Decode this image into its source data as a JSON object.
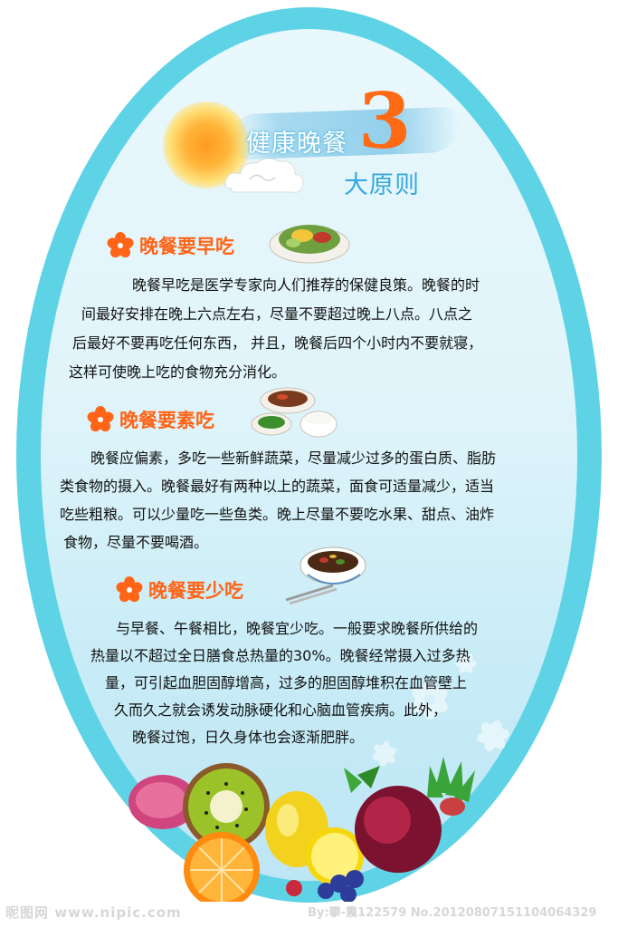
{
  "title": {
    "main": "健康晚餐",
    "number": "3",
    "sub": "大原则"
  },
  "sections": [
    {
      "heading": "晚餐要早吃",
      "lines": [
        "晚餐早吃是医学专家向人们推荐的保健良策。晚餐的时",
        "间最好安排在晚上六点左右，尽量不要超过晚上八点。八点之",
        "后最好不要再吃任何东西， 并且，晚餐后四个小时内不要就寝，",
        "这样可使晚上吃的食物充分消化。"
      ]
    },
    {
      "heading": "晚餐要素吃",
      "lines": [
        "晚餐应偏素，多吃一些新鲜蔬菜，尽量减少过多的蛋白质、脂肪",
        "类食物的摄入。晚餐最好有两种以上的蔬菜，面食可适量减少，适当",
        "吃些粗粮。可以少量吃一些鱼类。晚上尽量不要吃水果、甜点、油炸",
        "食物，尽量不要喝酒。"
      ]
    },
    {
      "heading": "晚餐要少吃",
      "lines": [
        "与早餐、午餐相比，晚餐宜少吃。一般要求晚餐所供给的",
        "热量以不超过全日膳食总热量的30%。晚餐经常摄入过多热",
        "量，可引起血胆固醇增高，过多的胆固醇堆积在血管壁上",
        "久而久之就会诱发动脉硬化和心脑血管疾病。此外，",
        "晚餐过饱，日久身体也会逐渐肥胖。"
      ]
    }
  ],
  "footer": {
    "left": "昵图网 www.nipic.com",
    "right": "By:攀-震122579 No.20120807151104064329"
  },
  "colors": {
    "heading": "#ff6417",
    "border": "#5fd3e6",
    "title_number": "#ff6a14",
    "title_sub": "#34a8e0"
  },
  "icons": [
    "sun-icon",
    "cloud-icon",
    "flower-bullet-icon",
    "salad-dish-icon",
    "meal-set-icon",
    "bowl-chopsticks-icon",
    "fruit-basket-illustration"
  ]
}
